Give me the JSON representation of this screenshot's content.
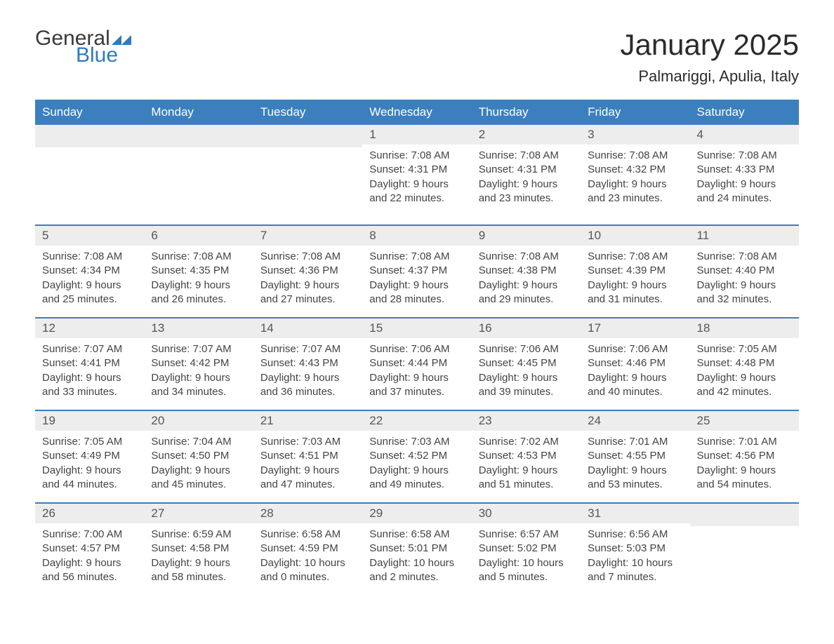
{
  "logo": {
    "text_general": "General",
    "text_blue": "Blue",
    "primary_color": "#2f7ac0"
  },
  "header": {
    "month_title": "January 2025",
    "location": "Palmariggi, Apulia, Italy"
  },
  "calendar": {
    "header_bg": "#3b7fbf",
    "header_fg": "#ffffff",
    "daynum_bg": "#ededed",
    "row_divider": "#3b7fbf",
    "columns": [
      "Sunday",
      "Monday",
      "Tuesday",
      "Wednesday",
      "Thursday",
      "Friday",
      "Saturday"
    ],
    "weeks": [
      [
        null,
        null,
        null,
        {
          "day": "1",
          "sunrise": "7:08 AM",
          "sunset": "4:31 PM",
          "daylight": "9 hours and 22 minutes."
        },
        {
          "day": "2",
          "sunrise": "7:08 AM",
          "sunset": "4:31 PM",
          "daylight": "9 hours and 23 minutes."
        },
        {
          "day": "3",
          "sunrise": "7:08 AM",
          "sunset": "4:32 PM",
          "daylight": "9 hours and 23 minutes."
        },
        {
          "day": "4",
          "sunrise": "7:08 AM",
          "sunset": "4:33 PM",
          "daylight": "9 hours and 24 minutes."
        }
      ],
      [
        {
          "day": "5",
          "sunrise": "7:08 AM",
          "sunset": "4:34 PM",
          "daylight": "9 hours and 25 minutes."
        },
        {
          "day": "6",
          "sunrise": "7:08 AM",
          "sunset": "4:35 PM",
          "daylight": "9 hours and 26 minutes."
        },
        {
          "day": "7",
          "sunrise": "7:08 AM",
          "sunset": "4:36 PM",
          "daylight": "9 hours and 27 minutes."
        },
        {
          "day": "8",
          "sunrise": "7:08 AM",
          "sunset": "4:37 PM",
          "daylight": "9 hours and 28 minutes."
        },
        {
          "day": "9",
          "sunrise": "7:08 AM",
          "sunset": "4:38 PM",
          "daylight": "9 hours and 29 minutes."
        },
        {
          "day": "10",
          "sunrise": "7:08 AM",
          "sunset": "4:39 PM",
          "daylight": "9 hours and 31 minutes."
        },
        {
          "day": "11",
          "sunrise": "7:08 AM",
          "sunset": "4:40 PM",
          "daylight": "9 hours and 32 minutes."
        }
      ],
      [
        {
          "day": "12",
          "sunrise": "7:07 AM",
          "sunset": "4:41 PM",
          "daylight": "9 hours and 33 minutes."
        },
        {
          "day": "13",
          "sunrise": "7:07 AM",
          "sunset": "4:42 PM",
          "daylight": "9 hours and 34 minutes."
        },
        {
          "day": "14",
          "sunrise": "7:07 AM",
          "sunset": "4:43 PM",
          "daylight": "9 hours and 36 minutes."
        },
        {
          "day": "15",
          "sunrise": "7:06 AM",
          "sunset": "4:44 PM",
          "daylight": "9 hours and 37 minutes."
        },
        {
          "day": "16",
          "sunrise": "7:06 AM",
          "sunset": "4:45 PM",
          "daylight": "9 hours and 39 minutes."
        },
        {
          "day": "17",
          "sunrise": "7:06 AM",
          "sunset": "4:46 PM",
          "daylight": "9 hours and 40 minutes."
        },
        {
          "day": "18",
          "sunrise": "7:05 AM",
          "sunset": "4:48 PM",
          "daylight": "9 hours and 42 minutes."
        }
      ],
      [
        {
          "day": "19",
          "sunrise": "7:05 AM",
          "sunset": "4:49 PM",
          "daylight": "9 hours and 44 minutes."
        },
        {
          "day": "20",
          "sunrise": "7:04 AM",
          "sunset": "4:50 PM",
          "daylight": "9 hours and 45 minutes."
        },
        {
          "day": "21",
          "sunrise": "7:03 AM",
          "sunset": "4:51 PM",
          "daylight": "9 hours and 47 minutes."
        },
        {
          "day": "22",
          "sunrise": "7:03 AM",
          "sunset": "4:52 PM",
          "daylight": "9 hours and 49 minutes."
        },
        {
          "day": "23",
          "sunrise": "7:02 AM",
          "sunset": "4:53 PM",
          "daylight": "9 hours and 51 minutes."
        },
        {
          "day": "24",
          "sunrise": "7:01 AM",
          "sunset": "4:55 PM",
          "daylight": "9 hours and 53 minutes."
        },
        {
          "day": "25",
          "sunrise": "7:01 AM",
          "sunset": "4:56 PM",
          "daylight": "9 hours and 54 minutes."
        }
      ],
      [
        {
          "day": "26",
          "sunrise": "7:00 AM",
          "sunset": "4:57 PM",
          "daylight": "9 hours and 56 minutes."
        },
        {
          "day": "27",
          "sunrise": "6:59 AM",
          "sunset": "4:58 PM",
          "daylight": "9 hours and 58 minutes."
        },
        {
          "day": "28",
          "sunrise": "6:58 AM",
          "sunset": "4:59 PM",
          "daylight": "10 hours and 0 minutes."
        },
        {
          "day": "29",
          "sunrise": "6:58 AM",
          "sunset": "5:01 PM",
          "daylight": "10 hours and 2 minutes."
        },
        {
          "day": "30",
          "sunrise": "6:57 AM",
          "sunset": "5:02 PM",
          "daylight": "10 hours and 5 minutes."
        },
        {
          "day": "31",
          "sunrise": "6:56 AM",
          "sunset": "5:03 PM",
          "daylight": "10 hours and 7 minutes."
        },
        null
      ]
    ],
    "labels": {
      "sunrise": "Sunrise: ",
      "sunset": "Sunset: ",
      "daylight": "Daylight: "
    }
  }
}
